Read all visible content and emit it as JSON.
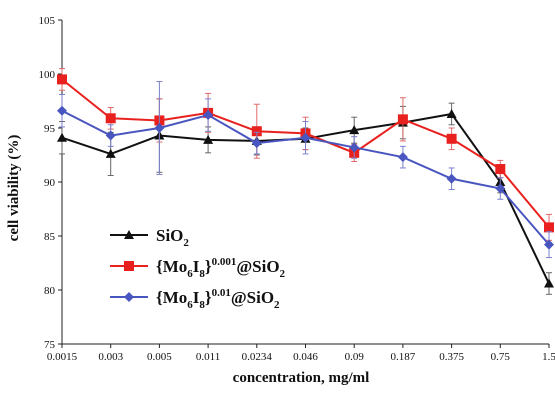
{
  "chart_data": {
    "type": "line",
    "xlabel": "concentration, mg/ml",
    "ylabel": "cell viability (%)",
    "categories": [
      "0.0015",
      "0.003",
      "0.005",
      "0.011",
      "0.0234",
      "0.046",
      "0.09",
      "0.187",
      "0.375",
      "0.75",
      "1.5"
    ],
    "ylim": [
      75,
      105
    ],
    "yticks": [
      75,
      80,
      85,
      90,
      95,
      100,
      105
    ],
    "grid": false,
    "legend_position": "bottom-left",
    "series": [
      {
        "name_parts": [
          "SiO",
          "2",
          "",
          ""
        ],
        "marker": "triangle",
        "color": "#111111",
        "values": [
          94.1,
          92.6,
          94.3,
          93.9,
          93.8,
          94.0,
          94.8,
          95.5,
          96.3,
          90.0,
          80.6
        ],
        "errors": [
          1.5,
          2.0,
          3.4,
          1.2,
          1.3,
          1.0,
          1.2,
          1.5,
          1.0,
          1.0,
          1.0
        ]
      },
      {
        "name_parts": [
          "{Mo",
          "6",
          "I",
          "8",
          "}",
          "0.001",
          "@SiO",
          "2"
        ],
        "marker": "square",
        "color": "#e8211f",
        "values": [
          99.5,
          95.9,
          95.7,
          96.4,
          94.7,
          94.5,
          92.7,
          95.8,
          94.0,
          91.2,
          85.8
        ],
        "errors": [
          1.0,
          1.0,
          2.0,
          1.8,
          2.5,
          1.5,
          0.8,
          2.0,
          1.0,
          0.8,
          1.2
        ]
      },
      {
        "name_parts": [
          "{Mo",
          "6",
          "I",
          "8",
          "}",
          "0.01",
          "@SiO",
          "2"
        ],
        "marker": "diamond",
        "color": "#4a56c0",
        "values": [
          96.6,
          94.3,
          95.0,
          96.2,
          93.6,
          94.1,
          93.2,
          92.3,
          90.3,
          89.4,
          84.2
        ],
        "errors": [
          1.5,
          1.0,
          4.3,
          1.5,
          1.0,
          1.5,
          1.0,
          1.0,
          1.0,
          1.0,
          1.2
        ]
      }
    ]
  }
}
